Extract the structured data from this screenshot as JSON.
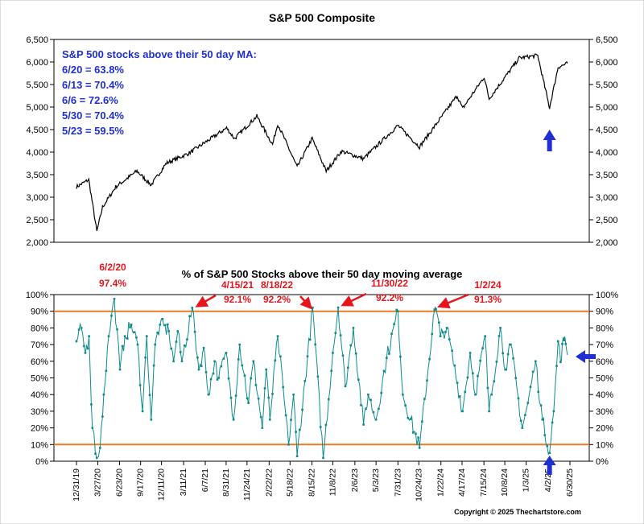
{
  "page": {
    "title": "S&P 500 Composite",
    "copyright": "Copyright © 2025 Thechartstore.com"
  },
  "chart_data": [
    {
      "type": "line",
      "title": "S&P 500 Composite",
      "ylim": [
        2000,
        6500
      ],
      "yticks": [
        "6,500",
        "6,000",
        "5,500",
        "5,000",
        "4,500",
        "4,000",
        "3,500",
        "3,000",
        "2,500",
        "2,000"
      ],
      "x_range": [
        "2019-12-31",
        "2025-06-20"
      ],
      "grid": false,
      "annotation_lines": [
        "S&P 500 stocks above their 50 day MA:",
        "6/20 = 63.8%",
        "6/13 = 70.4%",
        "6/6 = 72.6%",
        "5/30 = 70.4%",
        "5/23 = 59.5%"
      ],
      "series": [
        {
          "points": [
            [
              "2019-12-31",
              3230
            ],
            [
              "2020-02-19",
              3386
            ],
            [
              "2020-03-23",
              2237
            ],
            [
              "2020-04-15",
              2780
            ],
            [
              "2020-06-08",
              3230
            ],
            [
              "2020-09-02",
              3580
            ],
            [
              "2020-10-30",
              3270
            ],
            [
              "2020-12-31",
              3756
            ],
            [
              "2021-03-31",
              3970
            ],
            [
              "2021-06-30",
              4300
            ],
            [
              "2021-09-02",
              4536
            ],
            [
              "2021-10-04",
              4300
            ],
            [
              "2022-01-03",
              4796
            ],
            [
              "2022-03-08",
              4170
            ],
            [
              "2022-03-29",
              4630
            ],
            [
              "2022-06-16",
              3666
            ],
            [
              "2022-08-16",
              4305
            ],
            [
              "2022-10-12",
              3577
            ],
            [
              "2022-12-13",
              4020
            ],
            [
              "2023-03-13",
              3855
            ],
            [
              "2023-07-31",
              4590
            ],
            [
              "2023-10-27",
              4117
            ],
            [
              "2024-03-28",
              5254
            ],
            [
              "2024-04-19",
              4967
            ],
            [
              "2024-07-16",
              5667
            ],
            [
              "2024-08-05",
              5186
            ],
            [
              "2024-12-06",
              6090
            ],
            [
              "2025-02-19",
              6144
            ],
            [
              "2025-04-08",
              4983
            ],
            [
              "2025-05-13",
              5886
            ],
            [
              "2025-06-20",
              5968
            ]
          ]
        }
      ],
      "arrow": {
        "color": "#1f2fd0",
        "direction": "up",
        "at": "2025-04-08"
      }
    },
    {
      "type": "line",
      "title": "% of S&P 500 Stocks above their 50 day moving average",
      "ylim": [
        0,
        100
      ],
      "yticks": [
        "100%",
        "90%",
        "80%",
        "70%",
        "60%",
        "50%",
        "40%",
        "30%",
        "20%",
        "10%",
        "0%"
      ],
      "xticks": [
        "12/31/19",
        "3/27/20",
        "6/23/20",
        "9/17/20",
        "12/11/20",
        "3/11/21",
        "6/7/21",
        "8/31/21",
        "11/24/21",
        "2/22/22",
        "5/18/22",
        "8/15/22",
        "11/8/22",
        "2/6/23",
        "5/3/23",
        "7/31/23",
        "10/24/23",
        "1/22/24",
        "4/17/24",
        "7/15/24",
        "10/8/24",
        "1/3/25",
        "4/2/25",
        "6/30/25"
      ],
      "reference_lines": [
        90,
        10
      ],
      "grid": false,
      "series": [
        {
          "points": [
            [
              "2019-12-31",
              72
            ],
            [
              "2020-01-20",
              80
            ],
            [
              "2020-02-05",
              65
            ],
            [
              "2020-02-20",
              75
            ],
            [
              "2020-03-05",
              20
            ],
            [
              "2020-03-23",
              2
            ],
            [
              "2020-04-05",
              8
            ],
            [
              "2020-04-20",
              40
            ],
            [
              "2020-05-10",
              75
            ],
            [
              "2020-06-02",
              97.4
            ],
            [
              "2020-06-25",
              55
            ],
            [
              "2020-07-15",
              75
            ],
            [
              "2020-08-10",
              82
            ],
            [
              "2020-09-05",
              70
            ],
            [
              "2020-09-25",
              30
            ],
            [
              "2020-10-12",
              75
            ],
            [
              "2020-10-30",
              25
            ],
            [
              "2020-11-15",
              70
            ],
            [
              "2020-12-05",
              82
            ],
            [
              "2021-01-10",
              78
            ],
            [
              "2021-01-29",
              60
            ],
            [
              "2021-02-15",
              78
            ],
            [
              "2021-03-04",
              60
            ],
            [
              "2021-04-15",
              92.1
            ],
            [
              "2021-05-12",
              55
            ],
            [
              "2021-06-01",
              68
            ],
            [
              "2021-06-20",
              40
            ],
            [
              "2021-07-15",
              60
            ],
            [
              "2021-08-01",
              50
            ],
            [
              "2021-08-31",
              65
            ],
            [
              "2021-09-30",
              25
            ],
            [
              "2021-10-25",
              70
            ],
            [
              "2021-11-30",
              35
            ],
            [
              "2021-12-20",
              60
            ],
            [
              "2022-01-25",
              20
            ],
            [
              "2022-02-10",
              55
            ],
            [
              "2022-02-25",
              25
            ],
            [
              "2022-03-29",
              75
            ],
            [
              "2022-05-12",
              10
            ],
            [
              "2022-06-01",
              40
            ],
            [
              "2022-06-16",
              3
            ],
            [
              "2022-08-18",
              92.2
            ],
            [
              "2022-09-30",
              2
            ],
            [
              "2022-11-08",
              65
            ],
            [
              "2022-11-30",
              92.2
            ],
            [
              "2022-12-29",
              45
            ],
            [
              "2023-01-31",
              80
            ],
            [
              "2023-03-13",
              22
            ],
            [
              "2023-04-01",
              40
            ],
            [
              "2023-05-03",
              25
            ],
            [
              "2023-06-15",
              62
            ],
            [
              "2023-07-31",
              90
            ],
            [
              "2023-08-20",
              40
            ],
            [
              "2023-10-27",
              8
            ],
            [
              "2023-12-27",
              91
            ],
            [
              "2024-01-02",
              91.3
            ],
            [
              "2024-01-20",
              75
            ],
            [
              "2024-02-15",
              80
            ],
            [
              "2024-04-19",
              30
            ],
            [
              "2024-05-20",
              65
            ],
            [
              "2024-06-10",
              40
            ],
            [
              "2024-07-20",
              75
            ],
            [
              "2024-08-05",
              30
            ],
            [
              "2024-09-20",
              80
            ],
            [
              "2024-10-10",
              55
            ],
            [
              "2024-11-01",
              70
            ],
            [
              "2024-12-18",
              20
            ],
            [
              "2025-01-10",
              35
            ],
            [
              "2025-02-10",
              60
            ],
            [
              "2025-03-10",
              25
            ],
            [
              "2025-04-08",
              5
            ],
            [
              "2025-04-25",
              30
            ],
            [
              "2025-05-13",
              72
            ],
            [
              "2025-05-23",
              59.5
            ],
            [
              "2025-05-30",
              70.4
            ],
            [
              "2025-06-06",
              72.6
            ],
            [
              "2025-06-13",
              70.4
            ],
            [
              "2025-06-20",
              63.8
            ]
          ]
        }
      ],
      "peaks": [
        {
          "date": "6/2/20",
          "value": "97.4%"
        },
        {
          "date": "4/15/21",
          "value": "92.1%"
        },
        {
          "date": "8/18/22",
          "value": "92.2%"
        },
        {
          "date": "11/30/22",
          "value": "92.2%"
        },
        {
          "date": "1/2/24",
          "value": "91.3%"
        }
      ],
      "colors": {
        "line": "#0e8c8c",
        "reference": "#f07a20",
        "peak_labels": "#e8141c",
        "arrow": "#1f2fd0"
      }
    }
  ]
}
